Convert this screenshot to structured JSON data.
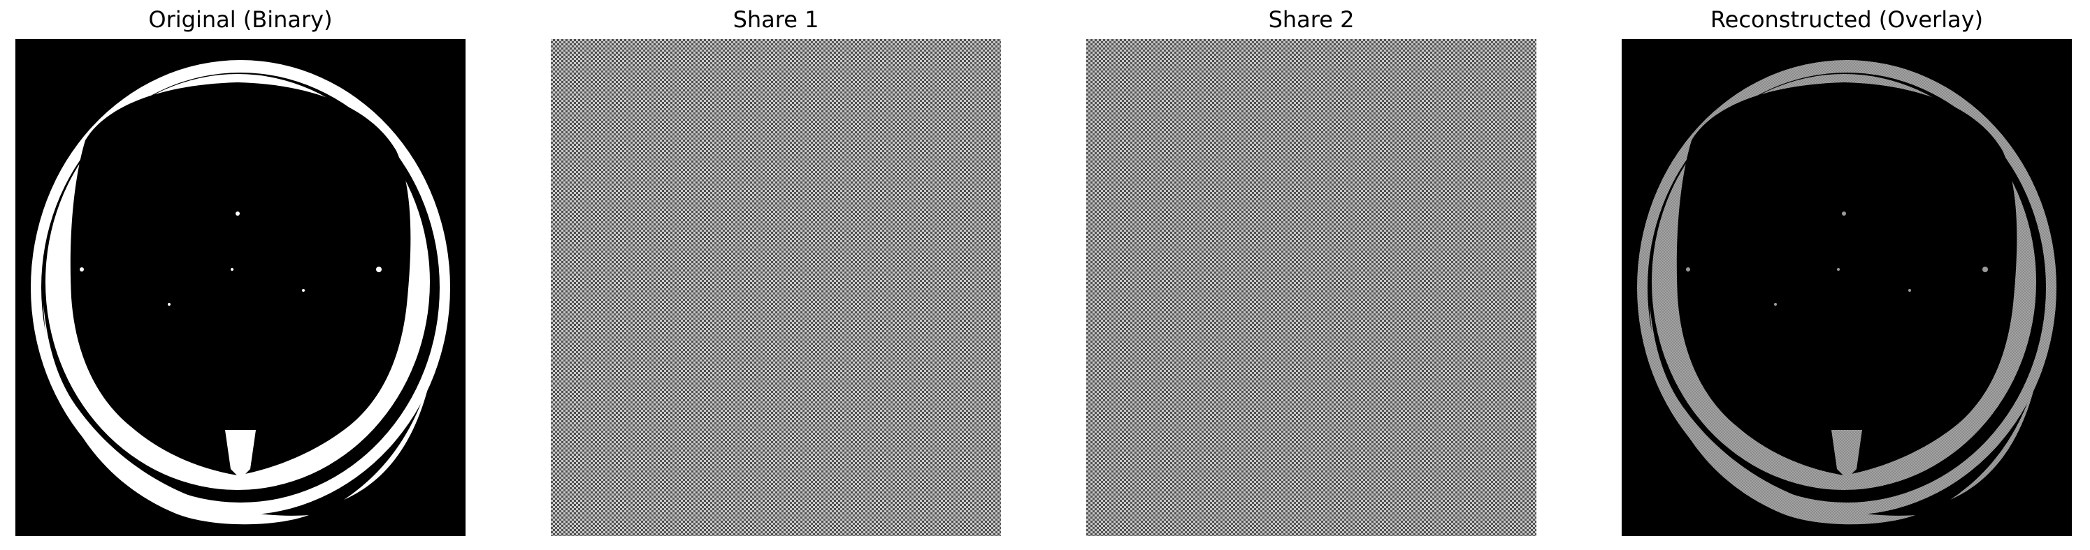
{
  "figure": {
    "panels": [
      {
        "title": "Original (Binary)"
      },
      {
        "title": "Share 1"
      },
      {
        "title": "Share 2"
      },
      {
        "title": "Reconstructed (Overlay)"
      }
    ],
    "colors": {
      "background": "#000000",
      "foreground": "#ffffff",
      "overlay_gray": "#9a9a9a",
      "noise_light": "#b8b8b8",
      "noise_dark": "#4a4a4a"
    }
  }
}
